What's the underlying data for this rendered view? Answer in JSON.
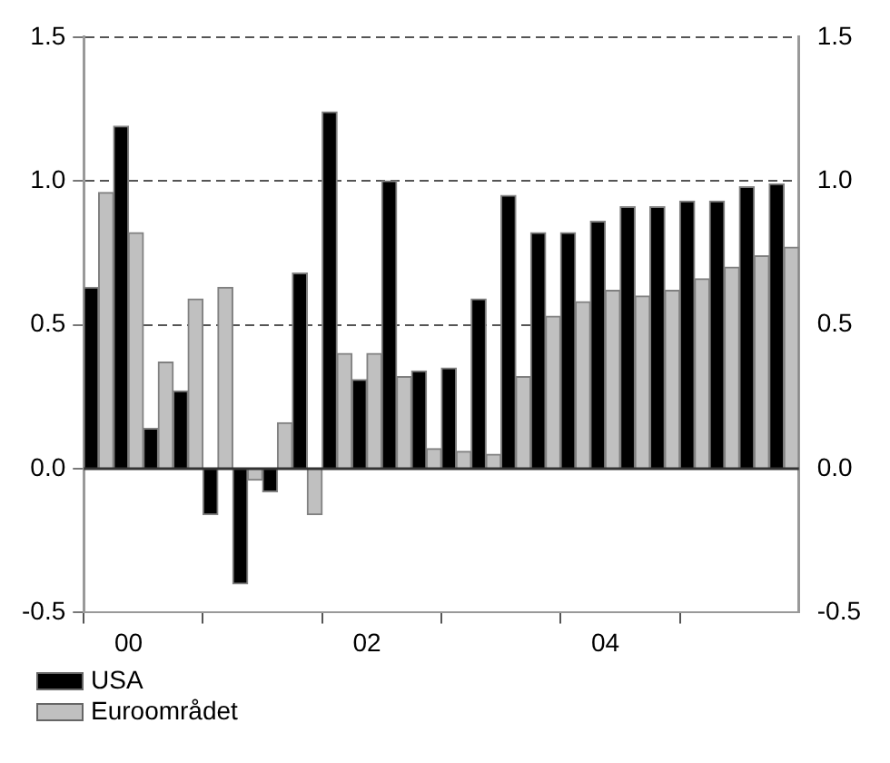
{
  "chart_data": {
    "type": "bar",
    "categories": [
      null,
      "00",
      null,
      null,
      null,
      null,
      null,
      null,
      null,
      "02",
      null,
      null,
      null,
      null,
      null,
      null,
      null,
      "04",
      null,
      null,
      null,
      null,
      null,
      null
    ],
    "series": [
      {
        "name": "USA",
        "color": "#000000",
        "values": [
          0.63,
          1.19,
          0.14,
          0.27,
          -0.16,
          -0.4,
          -0.08,
          0.68,
          1.24,
          0.31,
          1.0,
          0.34,
          0.35,
          0.59,
          0.95,
          0.82,
          0.82,
          0.86,
          0.91,
          0.91,
          0.93,
          0.93,
          0.98,
          0.99
        ]
      },
      {
        "name": "Euroområdet",
        "color": "#c0c0c0",
        "values": [
          0.96,
          0.82,
          0.37,
          0.59,
          0.63,
          -0.04,
          0.16,
          -0.16,
          0.4,
          0.4,
          0.32,
          0.07,
          0.06,
          0.05,
          0.32,
          0.53,
          0.58,
          0.62,
          0.6,
          0.62,
          0.66,
          0.7,
          0.74,
          0.77
        ]
      }
    ],
    "ylim": [
      -0.5,
      1.5
    ],
    "yticks": [
      -0.5,
      {
        "value": 0,
        "label": "0.0"
      },
      0.5,
      {
        "value": 1,
        "label": "1.0"
      },
      1.5
    ],
    "y2lim": [
      -0.5,
      1.5
    ],
    "y2ticks": [
      -0.5,
      {
        "value": 0,
        "label": "0.0"
      },
      0.5,
      {
        "value": 1,
        "label": "1.0"
      },
      1.5
    ],
    "grid": "y",
    "legend": "bottom left"
  }
}
